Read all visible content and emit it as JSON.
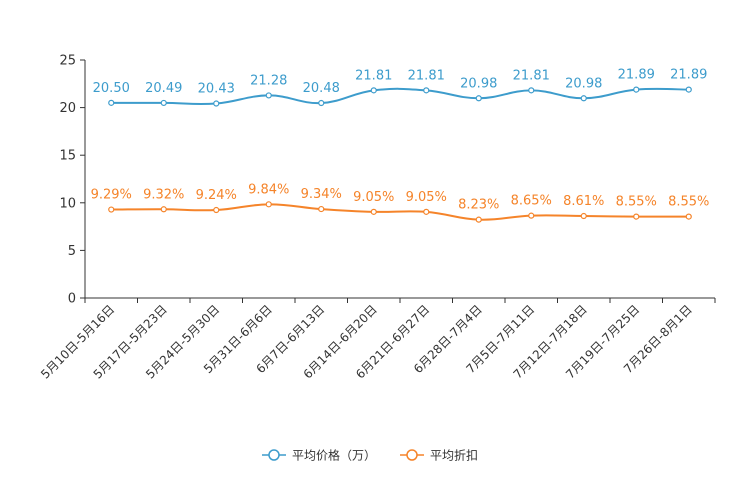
{
  "chart_data": {
    "type": "line",
    "categories": [
      "5月10日-5月16日",
      "5月17日-5月23日",
      "5月24日-5月30日",
      "5月31日-6月6日",
      "6月7日-6月13日",
      "6月14日-6月20日",
      "6月21日-6月27日",
      "6月28日-7月4日",
      "7月5日-7月11日",
      "7月12日-7月18日",
      "7月19日-7月25日",
      "7月26日-8月1日"
    ],
    "ylim": [
      0,
      25
    ],
    "yticks": [
      0,
      5,
      10,
      15,
      20,
      25
    ],
    "series": [
      {
        "name": "平均价格（万）",
        "color": "#3d9ccc",
        "values": [
          20.5,
          20.49,
          20.43,
          21.28,
          20.48,
          21.81,
          21.81,
          20.98,
          21.81,
          20.98,
          21.89,
          21.89
        ],
        "labels": [
          "20.50",
          "20.49",
          "20.43",
          "21.28",
          "20.48",
          "21.81",
          "21.81",
          "20.98",
          "21.81",
          "20.98",
          "21.89",
          "21.89"
        ]
      },
      {
        "name": "平均折扣",
        "color": "#f5842a",
        "values": [
          9.29,
          9.32,
          9.24,
          9.84,
          9.34,
          9.05,
          9.05,
          8.23,
          8.65,
          8.61,
          8.55,
          8.55
        ],
        "labels": [
          "9.29%",
          "9.32%",
          "9.24%",
          "9.84%",
          "9.34%",
          "9.05%",
          "9.05%",
          "8.23%",
          "8.65%",
          "8.61%",
          "8.55%",
          "8.55%"
        ]
      }
    ],
    "legend_position": "bottom-center"
  }
}
